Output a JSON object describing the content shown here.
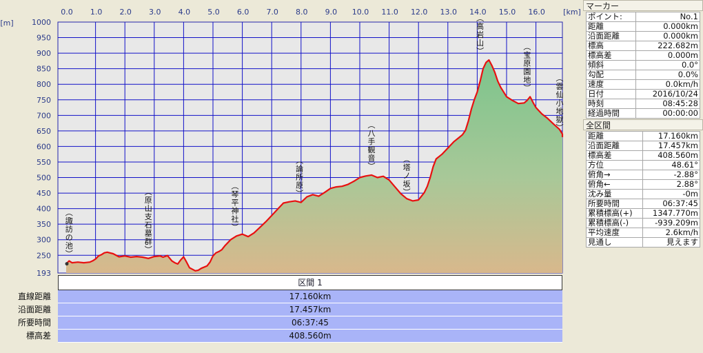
{
  "colors": {
    "plot_bg": "#e8e8e8",
    "grid": "#1010c8",
    "profile_line": "#e81010",
    "axis_text": "#2a3a8a",
    "summary_bg": "#a9b4f8",
    "fill_top": "#7cc48c",
    "fill_bottom": "#d8b88c"
  },
  "chart_data": {
    "type": "area",
    "x_unit_label": "[km]",
    "y_unit_label": "[m]",
    "x_ticks": [
      "0.0",
      "1.0",
      "2.0",
      "3.0",
      "4.0",
      "5.0",
      "6.0",
      "7.0",
      "8.0",
      "9.0",
      "10.0",
      "11.0",
      "12.0",
      "13.0",
      "14.0",
      "15.0",
      "16.0"
    ],
    "y_ticks": [
      "1000",
      "950",
      "900",
      "850",
      "800",
      "750",
      "700",
      "650",
      "600",
      "550",
      "500",
      "450",
      "400",
      "350",
      "300",
      "250",
      "193"
    ],
    "xlim": [
      0,
      17.16
    ],
    "ylim": [
      193,
      1000
    ],
    "grid": true,
    "profile": {
      "x": [
        0.0,
        0.1,
        0.2,
        0.4,
        0.6,
        0.8,
        0.9,
        1.0,
        1.1,
        1.2,
        1.3,
        1.4,
        1.6,
        1.8,
        2.0,
        2.2,
        2.4,
        2.6,
        2.8,
        3.0,
        3.2,
        3.3,
        3.45,
        3.6,
        3.7,
        3.8,
        3.9,
        4.0,
        4.1,
        4.2,
        4.4,
        4.5,
        4.6,
        4.8,
        4.9,
        5.0,
        5.1,
        5.2,
        5.3,
        5.4,
        5.5,
        5.6,
        5.8,
        6.0,
        6.2,
        6.4,
        6.6,
        6.8,
        7.0,
        7.2,
        7.4,
        7.6,
        7.8,
        8.0,
        8.2,
        8.4,
        8.6,
        8.8,
        9.0,
        9.2,
        9.4,
        9.6,
        9.8,
        10.0,
        10.2,
        10.4,
        10.6,
        10.8,
        11.0,
        11.2,
        11.4,
        11.6,
        11.8,
        12.0,
        12.1,
        12.2,
        12.3,
        12.4,
        12.5,
        12.6,
        12.8,
        13.0,
        13.2,
        13.4,
        13.5,
        13.6,
        13.7,
        13.8,
        13.9,
        14.0,
        14.1,
        14.2,
        14.3,
        14.4,
        14.5,
        14.6,
        14.7,
        14.8,
        15.0,
        15.2,
        15.4,
        15.6,
        15.7,
        15.8,
        15.9,
        16.0,
        16.2,
        16.4,
        16.6,
        16.8,
        17.0,
        17.16
      ],
      "y": [
        222.7,
        232,
        226,
        228,
        226,
        228,
        232,
        238,
        248,
        252,
        258,
        260,
        255,
        245,
        248,
        244,
        246,
        244,
        240,
        246,
        248,
        244,
        249,
        232,
        226,
        222,
        235,
        245,
        228,
        210,
        200,
        202,
        208,
        216,
        228,
        248,
        258,
        262,
        268,
        280,
        290,
        300,
        312,
        318,
        310,
        322,
        340,
        358,
        378,
        398,
        418,
        422,
        425,
        420,
        438,
        445,
        440,
        452,
        465,
        470,
        472,
        478,
        488,
        500,
        505,
        508,
        500,
        504,
        492,
        470,
        448,
        432,
        425,
        428,
        440,
        452,
        472,
        500,
        535,
        560,
        575,
        595,
        615,
        630,
        638,
        652,
        682,
        720,
        750,
        775,
        810,
        850,
        870,
        878,
        860,
        838,
        810,
        790,
        760,
        748,
        738,
        740,
        748,
        760,
        742,
        725,
        705,
        690,
        672,
        655,
        640,
        630
      ]
    },
    "annotations": [
      {
        "label": "諏訪の池",
        "x": 0.1,
        "y": 226
      },
      {
        "label": "原山支石墓群",
        "x": 2.8,
        "y": 240
      },
      {
        "label": "琴平神社",
        "x": 5.75,
        "y": 312
      },
      {
        "label": "論所原",
        "x": 7.95,
        "y": 420
      },
      {
        "label": "八手観音",
        "x": 10.4,
        "y": 508
      },
      {
        "label": "塔ノ坂",
        "x": 11.6,
        "y": 425
      },
      {
        "label": "高岩山",
        "x": 14.1,
        "y": 878
      },
      {
        "label": "宝原園地",
        "x": 15.7,
        "y": 760
      },
      {
        "label": "雲仙小地獄",
        "x": 17.1,
        "y": 632
      }
    ]
  },
  "section": {
    "header": "区間 1",
    "rows": [
      {
        "label": "直線距離",
        "value": "17.160km"
      },
      {
        "label": "沿面距離",
        "value": "17.457km"
      },
      {
        "label": "所要時間",
        "value": "06:37:45"
      },
      {
        "label": "標高差",
        "value": "408.560m"
      }
    ]
  },
  "marker": {
    "title": "マーカー",
    "rows": [
      {
        "label": "ポイント:",
        "value": "No.1"
      },
      {
        "label": "距離",
        "value": "0.000km"
      },
      {
        "label": "沿面距離",
        "value": "0.000km"
      },
      {
        "label": "標高",
        "value": "222.682m"
      },
      {
        "label": "標高差",
        "value": "0.000m"
      },
      {
        "label": "傾斜",
        "value": "0.0°"
      },
      {
        "label": "勾配",
        "value": "0.0%"
      },
      {
        "label": "速度",
        "value": "0.0km/h"
      },
      {
        "label": "日付",
        "value": "2016/10/24"
      },
      {
        "label": "時刻",
        "value": "08:45:28"
      },
      {
        "label": "経過時間",
        "value": "00:00:00"
      }
    ]
  },
  "all": {
    "title": "全区間",
    "rows": [
      {
        "label": "距離",
        "value": "17.160km"
      },
      {
        "label": "沿面距離",
        "value": "17.457km"
      },
      {
        "label": "標高差",
        "value": "408.560m"
      },
      {
        "label": "方位",
        "value": "48.61°"
      },
      {
        "label": "俯角→",
        "value": "-2.88°"
      },
      {
        "label": "俯角←",
        "value": "2.88°"
      },
      {
        "label": "沈み量",
        "value": "-0m"
      },
      {
        "label": "所要時間",
        "value": "06:37:45"
      },
      {
        "label": "累積標高(+)",
        "value": "1347.770m"
      },
      {
        "label": "累積標高(-)",
        "value": "-939.209m"
      },
      {
        "label": "平均速度",
        "value": "2.6km/h"
      },
      {
        "label": "見通し",
        "value": "見えます"
      }
    ]
  }
}
